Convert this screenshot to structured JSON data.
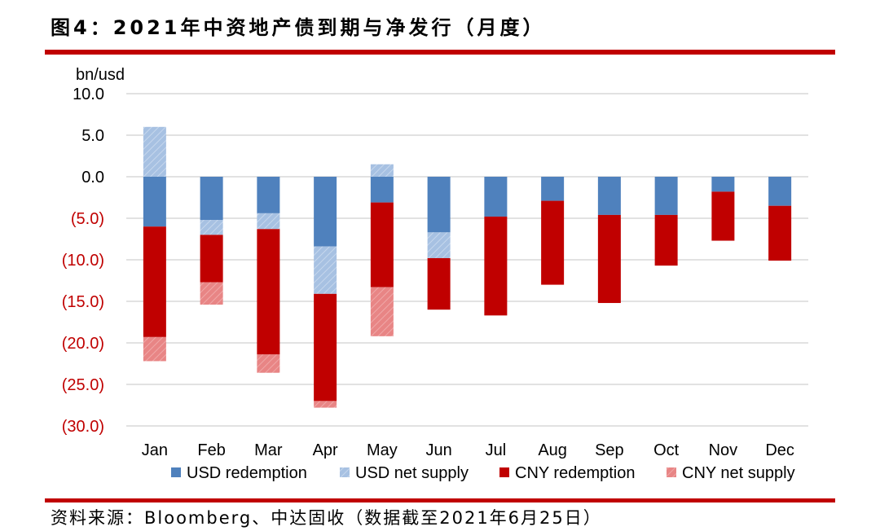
{
  "title": "图4：2021年中资地产债到期与净发行（月度）",
  "source": "资料来源：Bloomberg、中达固收（数据截至2021年6月25日）",
  "colors": {
    "usd_redemption": "#4f81bd",
    "usd_net_supply": "#a7c1e2",
    "cny_redemption": "#c00000",
    "cny_net_supply": "#e88585",
    "rule": "#c00000",
    "negative_tick": "#c00000"
  },
  "chart_data": {
    "type": "bar",
    "stacked": true,
    "ylabel": "bn/usd",
    "ylim": [
      -30,
      10
    ],
    "yticks": [
      10,
      5,
      0,
      -5,
      -10,
      -15,
      -20,
      -25,
      -30
    ],
    "ytick_labels": [
      "10.0",
      "5.0",
      "0.0",
      "(5.0)",
      "(10.0)",
      "(15.0)",
      "(20.0)",
      "(25.0)",
      "(30.0)"
    ],
    "grid": true,
    "legend_position": "bottom",
    "categories": [
      "Jan",
      "Feb",
      "Mar",
      "Apr",
      "May",
      "Jun",
      "Jul",
      "Aug",
      "Sep",
      "Oct",
      "Nov",
      "Dec"
    ],
    "series": [
      {
        "name": "USD redemption",
        "values": [
          -6.0,
          -5.2,
          -4.4,
          -8.4,
          -3.1,
          -6.7,
          -4.8,
          -2.9,
          -4.6,
          -4.6,
          -1.8,
          -3.5
        ]
      },
      {
        "name": "USD net supply",
        "values": [
          6.0,
          -1.8,
          -1.9,
          -5.7,
          1.5,
          -3.1,
          0,
          0,
          0,
          0,
          0,
          0
        ]
      },
      {
        "name": "CNY redemption",
        "values": [
          -13.3,
          -5.7,
          -15.1,
          -12.9,
          -10.2,
          -6.2,
          -11.9,
          -10.1,
          -10.6,
          -6.1,
          -5.9,
          -6.6
        ]
      },
      {
        "name": "CNY net supply",
        "values": [
          -2.9,
          -2.7,
          -2.2,
          -0.8,
          -5.9,
          0,
          0,
          0,
          0,
          0,
          0,
          0
        ]
      }
    ]
  }
}
